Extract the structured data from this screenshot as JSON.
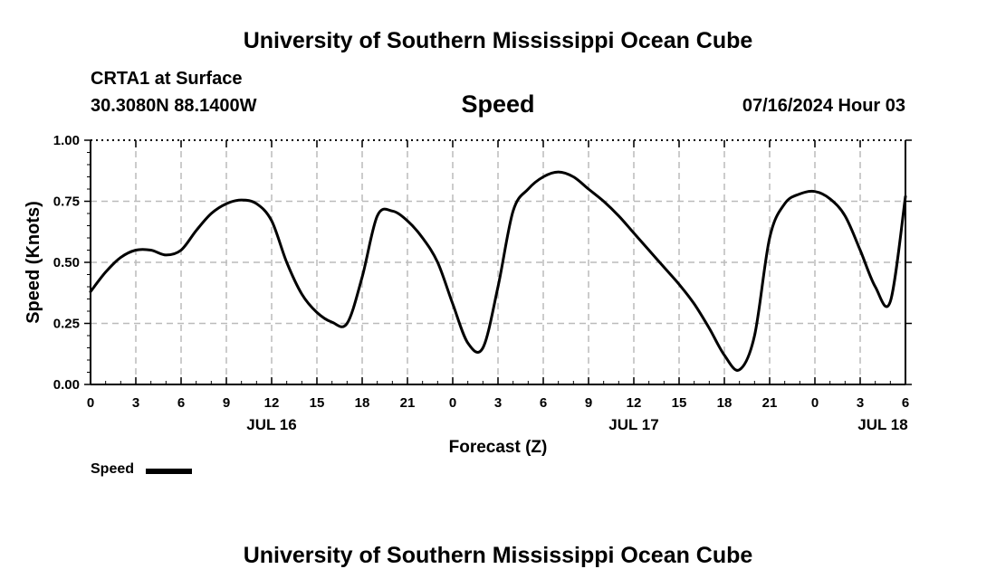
{
  "header": {
    "title": "University of Southern Mississippi Ocean Cube",
    "station": "CRTA1 at Surface",
    "coordinates": "30.3080N  88.1400W",
    "variable": "Speed",
    "datetime": "07/16/2024 Hour 03"
  },
  "footer": {
    "title": "University of Southern Mississippi Ocean Cube"
  },
  "legend": {
    "label": "Speed",
    "color": "#000000"
  },
  "chart_data": {
    "type": "line",
    "title": "Speed",
    "xlabel": "Forecast (Z)",
    "ylabel": "Speed (Knots)",
    "xlim": [
      0,
      54
    ],
    "ylim": [
      0,
      1
    ],
    "grid": true,
    "legend_position": "bottom-left",
    "x_ticks": [
      "0",
      "3",
      "6",
      "9",
      "12",
      "15",
      "18",
      "21",
      "0",
      "3",
      "6",
      "9",
      "12",
      "15",
      "18",
      "21",
      "0",
      "3",
      "6"
    ],
    "y_ticks": [
      "0.00",
      "0.25",
      "0.50",
      "0.75",
      "1.00"
    ],
    "date_labels": [
      {
        "x": 12,
        "label": "JUL 16"
      },
      {
        "x": 36,
        "label": "JUL 17"
      },
      {
        "x": 52.5,
        "label": "JUL 18"
      }
    ],
    "series": [
      {
        "name": "Speed",
        "color": "#000000",
        "x": [
          0,
          1,
          2,
          3,
          4,
          5,
          6,
          7,
          8,
          9,
          10,
          11,
          12,
          13,
          14,
          15,
          16,
          17,
          18,
          19,
          20,
          21,
          22,
          23,
          24,
          25,
          26,
          27,
          28,
          29,
          30,
          31,
          32,
          33,
          34,
          35,
          36,
          37,
          38,
          39,
          40,
          41,
          42,
          43,
          44,
          45,
          46,
          47,
          48,
          49,
          50,
          51,
          52,
          53,
          54
        ],
        "y": [
          0.38,
          0.46,
          0.52,
          0.55,
          0.55,
          0.53,
          0.55,
          0.63,
          0.7,
          0.74,
          0.755,
          0.74,
          0.67,
          0.5,
          0.37,
          0.295,
          0.255,
          0.25,
          0.44,
          0.69,
          0.71,
          0.67,
          0.6,
          0.5,
          0.33,
          0.17,
          0.15,
          0.4,
          0.71,
          0.8,
          0.85,
          0.87,
          0.85,
          0.8,
          0.75,
          0.69,
          0.62,
          0.55,
          0.48,
          0.41,
          0.33,
          0.23,
          0.12,
          0.06,
          0.2,
          0.6,
          0.74,
          0.78,
          0.79,
          0.76,
          0.69,
          0.55,
          0.4,
          0.34,
          0.77
        ]
      }
    ]
  }
}
